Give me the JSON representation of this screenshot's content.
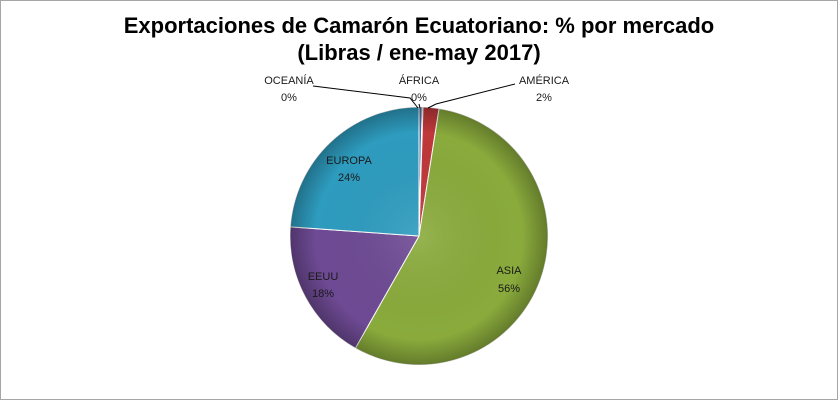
{
  "chart_data": {
    "type": "pie",
    "title": "Exportaciones de Camarón Ecuatoriano: % por mercado",
    "subtitle": "(Libras / ene-may 2017)",
    "slices": [
      {
        "label": "OCEANÍA",
        "value_label": "0%",
        "value": 0.4,
        "color": "#4a6fa5"
      },
      {
        "label": "ÁFRICA",
        "value_label": "0%",
        "value": 0.1,
        "color": "#e07b2a"
      },
      {
        "label": "AMÉRICA",
        "value_label": "2%",
        "value": 2,
        "color": "#c0383a"
      },
      {
        "label": "ASIA",
        "value_label": "56%",
        "value": 56,
        "color": "#8aab3c"
      },
      {
        "label": "EEUU",
        "value_label": "18%",
        "value": 18,
        "color": "#6e4a94"
      },
      {
        "label": "EUROPA",
        "value_label": "24%",
        "value": 24,
        "color": "#2e9cbf"
      }
    ],
    "start_angle_deg": 0,
    "direction": "clockwise",
    "legend": "none"
  }
}
